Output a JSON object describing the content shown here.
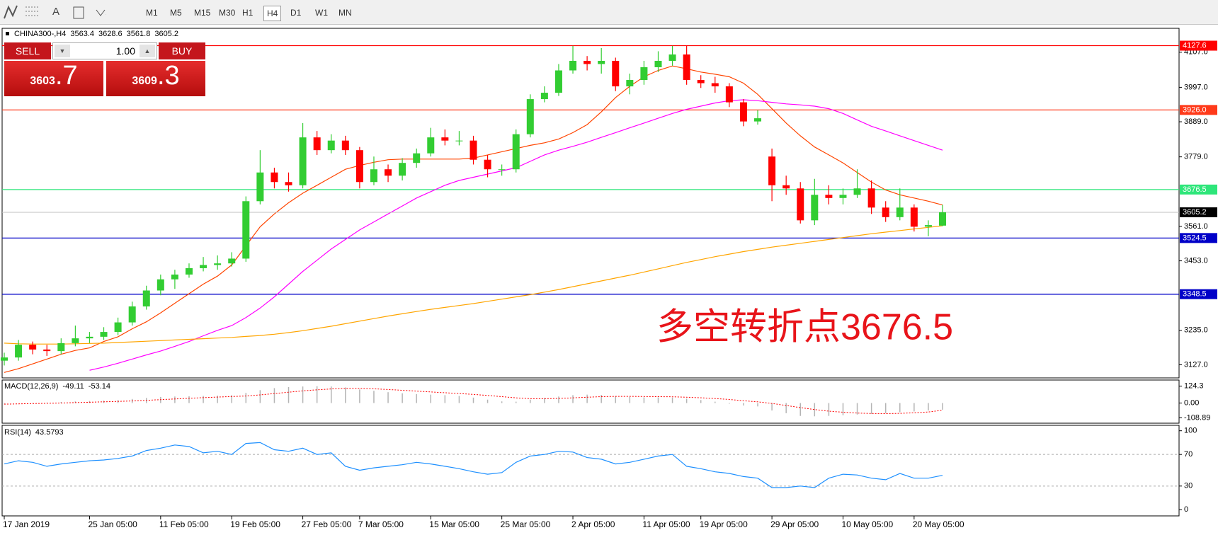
{
  "toolbar": {
    "text_tool": "A",
    "timeframes": [
      "M1",
      "M5",
      "M15",
      "M30",
      "H1",
      "H4",
      "D1",
      "W1",
      "MN"
    ],
    "selected": 5
  },
  "trade_panel": {
    "sell": "SELL",
    "lots": "1.00",
    "buy": "BUY",
    "bid": [
      "3603",
      ".7"
    ],
    "ask": [
      "3609",
      ".3"
    ]
  },
  "chart_data": [
    {
      "type": "candlestick",
      "symbol": "CHINA300-,H4",
      "categories": [
        "17 Jan 2019",
        null,
        null,
        null,
        null,
        null,
        "25 Jan 05:00",
        null,
        null,
        null,
        null,
        "11 Feb 05:00",
        null,
        null,
        null,
        null,
        "19 Feb 05:00",
        null,
        null,
        null,
        null,
        "27 Feb 05:00",
        null,
        null,
        null,
        "7 Mar 05:00",
        null,
        null,
        null,
        null,
        "15 Mar 05:00",
        null,
        null,
        null,
        null,
        "25 Mar 05:00",
        null,
        null,
        null,
        null,
        "2 Apr 05:00",
        null,
        null,
        null,
        null,
        "11 Apr 05:00",
        null,
        null,
        null,
        "19 Apr 05:00",
        null,
        null,
        null,
        null,
        "29 Apr 05:00",
        null,
        null,
        null,
        null,
        "10 May 05:00",
        null,
        null,
        null,
        null,
        "20 May 05:00",
        null,
        null
      ],
      "open": [
        3140,
        3150,
        3190,
        3175,
        3170,
        3195,
        3210,
        3215,
        3230,
        3260,
        3310,
        3360,
        3395,
        3410,
        3430,
        3440,
        3445,
        3460,
        3640,
        3730,
        3700,
        3690,
        3840,
        3800,
        3830,
        3800,
        3700,
        3740,
        3720,
        3760,
        3790,
        3840,
        3830,
        3830,
        3770,
        3740,
        3740,
        3850,
        3960,
        3980,
        4050,
        4080,
        4070,
        4080,
        4000,
        4020,
        4060,
        4080,
        4100,
        4020,
        4010,
        4000,
        3950,
        3890,
        3780,
        3690,
        3680,
        3580,
        3660,
        3650,
        3660,
        3680,
        3620,
        3590,
        3620,
        3560,
        3563.4
      ],
      "high": [
        3165,
        3205,
        3200,
        3190,
        3210,
        3250,
        3230,
        3245,
        3275,
        3325,
        3375,
        3410,
        3425,
        3445,
        3465,
        3470,
        3480,
        3655,
        3800,
        3745,
        3730,
        3885,
        3860,
        3850,
        3845,
        3810,
        3780,
        3755,
        3775,
        3805,
        3870,
        3865,
        3860,
        3845,
        3785,
        3755,
        3865,
        3975,
        4000,
        4070,
        4127,
        4095,
        4120,
        4090,
        4040,
        4080,
        4110,
        4127,
        4127,
        4035,
        4030,
        4010,
        3960,
        3925,
        3805,
        3720,
        3700,
        3710,
        3690,
        3680,
        3740,
        3705,
        3640,
        3680,
        3630,
        3580,
        3628.6
      ],
      "low": [
        3125,
        3140,
        3160,
        3155,
        3160,
        3185,
        3195,
        3205,
        3220,
        3250,
        3300,
        3345,
        3365,
        3400,
        3420,
        3425,
        3435,
        3450,
        3630,
        3680,
        3670,
        3680,
        3785,
        3790,
        3785,
        3680,
        3690,
        3700,
        3705,
        3745,
        3780,
        3815,
        3815,
        3755,
        3715,
        3720,
        3730,
        3840,
        3950,
        3970,
        4040,
        4050,
        4040,
        3985,
        3975,
        4005,
        4045,
        4065,
        4005,
        3995,
        3980,
        3935,
        3875,
        3880,
        3640,
        3660,
        3570,
        3565,
        3630,
        3630,
        3650,
        3600,
        3575,
        3580,
        3545,
        3530,
        3561.8
      ],
      "close": [
        3150,
        3190,
        3175,
        3170,
        3195,
        3210,
        3215,
        3230,
        3260,
        3310,
        3360,
        3395,
        3410,
        3430,
        3440,
        3445,
        3460,
        3640,
        3730,
        3700,
        3690,
        3840,
        3800,
        3830,
        3800,
        3700,
        3740,
        3720,
        3760,
        3790,
        3840,
        3830,
        3830,
        3770,
        3740,
        3740,
        3850,
        3960,
        3980,
        4050,
        4080,
        4070,
        4080,
        4000,
        4020,
        4060,
        4080,
        4100,
        4020,
        4010,
        4000,
        3950,
        3890,
        3900,
        3690,
        3680,
        3580,
        3660,
        3650,
        3660,
        3680,
        3620,
        3590,
        3620,
        3560,
        3565,
        3605.2
      ],
      "up_color": "#32cd32",
      "down_color": "#ff0000",
      "bid_line_color": "#c0c0c0",
      "moving_averages": [
        {
          "color": "#ff4500",
          "values": [
            3103,
            3115,
            3130,
            3145,
            3160,
            3172,
            3180,
            3200,
            3215,
            3240,
            3262,
            3290,
            3320,
            3350,
            3380,
            3405,
            3440,
            3500,
            3560,
            3600,
            3635,
            3665,
            3690,
            3715,
            3740,
            3752,
            3762,
            3770,
            3772,
            3772,
            3772,
            3772,
            3772,
            3775,
            3785,
            3795,
            3805,
            3815,
            3823,
            3835,
            3855,
            3880,
            3920,
            3965,
            4000,
            4030,
            4050,
            4064,
            4055,
            4045,
            4038,
            4030,
            4010,
            3975,
            3930,
            3885,
            3845,
            3810,
            3785,
            3760,
            3730,
            3700,
            3675,
            3660,
            3650,
            3640,
            3628
          ]
        },
        {
          "color": "#ff00ff",
          "values": [
            null,
            null,
            null,
            null,
            null,
            null,
            3110,
            3120,
            3132,
            3145,
            3158,
            3170,
            3185,
            3200,
            3218,
            3235,
            3250,
            3275,
            3305,
            3340,
            3380,
            3420,
            3455,
            3490,
            3520,
            3550,
            3575,
            3600,
            3625,
            3650,
            3670,
            3690,
            3705,
            3715,
            3725,
            3735,
            3745,
            3765,
            3785,
            3800,
            3812,
            3825,
            3840,
            3855,
            3870,
            3885,
            3900,
            3915,
            3928,
            3938,
            3948,
            3955,
            3958,
            3955,
            3950,
            3945,
            3942,
            3938,
            3930,
            3915,
            3895,
            3875,
            3860,
            3845,
            3830,
            3815,
            3800
          ]
        },
        {
          "color": "#ffa500",
          "values": [
            3195,
            3193,
            3192,
            3192,
            3192,
            3193,
            3194,
            3195,
            3197,
            3199,
            3201,
            3203,
            3205,
            3207,
            3209,
            3211,
            3213,
            3216,
            3219,
            3223,
            3228,
            3234,
            3241,
            3248,
            3256,
            3264,
            3272,
            3280,
            3287,
            3294,
            3301,
            3307,
            3313,
            3319,
            3326,
            3333,
            3340,
            3347,
            3355,
            3363,
            3372,
            3381,
            3390,
            3399,
            3408,
            3418,
            3428,
            3438,
            3448,
            3457,
            3466,
            3474,
            3482,
            3489,
            3496,
            3502,
            3508,
            3514,
            3520,
            3526,
            3532,
            3538,
            3543,
            3548,
            3553,
            3558,
            3563
          ]
        }
      ],
      "levels": [
        {
          "value": 4127.6,
          "color": "#ff0000"
        },
        {
          "value": 3926,
          "label": "3926.0",
          "color": "#ff3a1a"
        },
        {
          "value": 3676.5,
          "color": "#2ee67a"
        },
        {
          "value": 3524.5,
          "color": "#0000c8"
        },
        {
          "value": 3348.5,
          "color": "#0000c8"
        }
      ],
      "ylim": [
        3086,
        4182
      ],
      "yticks": [
        {
          "value": 4107,
          "label": "4107.0"
        },
        {
          "value": 3997,
          "label": "3997.0"
        },
        {
          "value": 3889,
          "label": "3889.0"
        },
        {
          "value": 3779,
          "label": "3779.0"
        },
        {
          "value": 3561,
          "label": "3561.0"
        },
        {
          "value": 3453,
          "label": "3453.0"
        },
        {
          "value": 3235,
          "label": "3235.0"
        },
        {
          "value": 3127,
          "label": "3127.0"
        }
      ],
      "annotation": "多空转折点3676.5"
    },
    {
      "type": "macd",
      "title": "MACD(12,26,9)",
      "color": "#b4b4b4",
      "signal_color": "#ff0000",
      "values": [
        -5,
        0,
        2,
        3,
        8,
        12,
        15,
        18,
        22,
        30,
        38,
        45,
        48,
        50,
        52,
        55,
        58,
        75,
        95,
        110,
        118,
        122,
        124,
        122,
        115,
        100,
        90,
        80,
        72,
        66,
        62,
        58,
        52,
        40,
        25,
        12,
        10,
        25,
        38,
        48,
        58,
        62,
        60,
        50,
        45,
        42,
        42,
        40,
        32,
        22,
        10,
        -5,
        -18,
        -25,
        -55,
        -75,
        -95,
        -98,
        -95,
        -90,
        -85,
        -80,
        -75,
        -68,
        -62,
        -55,
        -49.11
      ],
      "signal": [
        -8,
        -6,
        -4,
        -2,
        0,
        3,
        6,
        9,
        12,
        15,
        20,
        25,
        30,
        35,
        40,
        44,
        48,
        52,
        60,
        70,
        80,
        90,
        98,
        104,
        108,
        108,
        105,
        100,
        94,
        88,
        82,
        76,
        70,
        64,
        56,
        47,
        38,
        32,
        32,
        34,
        38,
        43,
        47,
        49,
        49,
        48,
        47,
        46,
        43,
        39,
        33,
        26,
        17,
        9,
        -3,
        -18,
        -34,
        -48,
        -60,
        -68,
        -74,
        -77,
        -78,
        -76,
        -72,
        -66,
        -53.14
      ],
      "ylim": [
        -148.7,
        169.8
      ],
      "yticks": [
        124.3,
        {
          "value": 0,
          "label": "0.00"
        },
        -108.89
      ]
    },
    {
      "type": "rsi",
      "title": "RSI(14)",
      "color": "#1e90ff",
      "values": [
        58,
        62,
        60,
        55,
        58,
        60,
        62,
        63,
        65,
        68,
        75,
        78,
        82,
        80,
        72,
        74,
        70,
        84,
        85,
        76,
        74,
        78,
        70,
        72,
        55,
        50,
        53,
        55,
        57,
        60,
        58,
        55,
        52,
        48,
        45,
        47,
        60,
        68,
        70,
        74,
        73,
        66,
        64,
        58,
        60,
        64,
        68,
        70,
        55,
        52,
        48,
        46,
        42,
        40,
        28,
        28,
        30,
        28,
        40,
        45,
        44,
        40,
        38,
        46,
        40,
        40,
        43.5793
      ],
      "ylim": [
        -7.8,
        106.9
      ],
      "yticks": [
        100,
        70,
        30,
        0
      ],
      "grid_levels": [
        70,
        30
      ]
    }
  ]
}
